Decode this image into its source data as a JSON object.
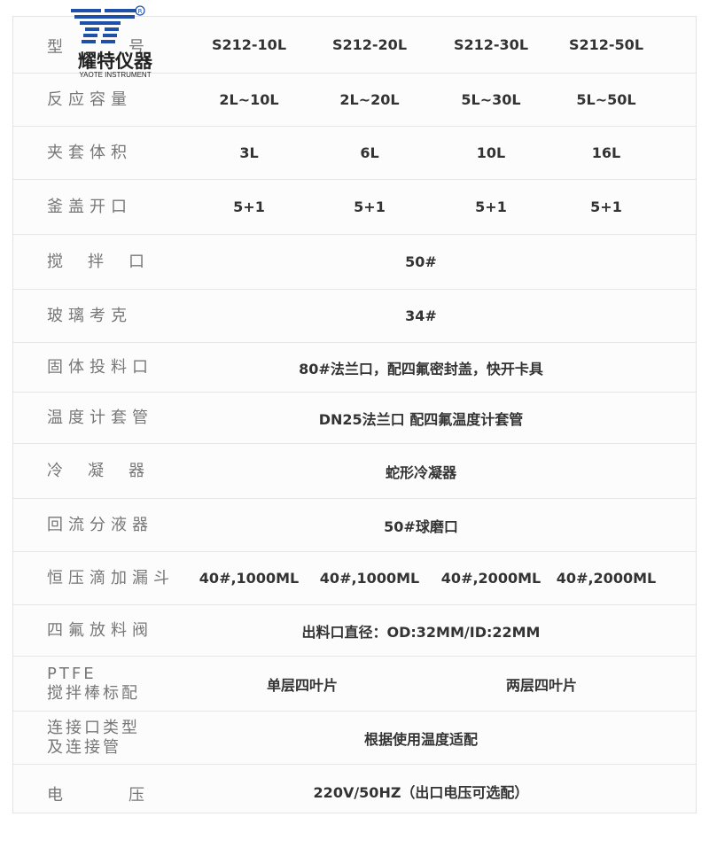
{
  "logo": {
    "brand_cn": "耀特仪器",
    "brand_en": "YAOTE INSTRUMENT",
    "mark": "YT",
    "registered": "®",
    "color": "#1f4fa8"
  },
  "rows": [
    {
      "label": "型号",
      "values": [
        "S212-10L",
        "S212-20L",
        "S212-30L",
        "S212-50L"
      ]
    },
    {
      "label": "反应容量",
      "values": [
        "2L~10L",
        "2L~20L",
        "5L~30L",
        "5L~50L"
      ]
    },
    {
      "label": "夹套体积",
      "values": [
        "3L",
        "6L",
        "10L",
        "16L"
      ]
    },
    {
      "label": "釜盖开口",
      "values": [
        "5+1",
        "5+1",
        "5+1",
        "5+1"
      ]
    },
    {
      "label": "搅拌口",
      "values": [
        "50#"
      ]
    },
    {
      "label": "玻璃考克",
      "values": [
        "34#"
      ]
    },
    {
      "label": "固体投料口",
      "values": [
        "80#法兰口，配四氟密封盖，快开卡具"
      ]
    },
    {
      "label": "温度计套管",
      "values": [
        "DN25法兰口 配四氟温度计套管"
      ]
    },
    {
      "label": "冷凝器",
      "values": [
        "蛇形冷凝器"
      ]
    },
    {
      "label": "回流分液器",
      "values": [
        "50#球磨口"
      ]
    },
    {
      "label": "恒压滴加漏斗",
      "values": [
        "40#,1000ML",
        "40#,1000ML",
        "40#,2000ML",
        "40#,2000ML"
      ]
    },
    {
      "label": "四氟放料阀",
      "values": [
        "出料口直径：OD:32MM/ID:22MM"
      ]
    },
    {
      "label": "PTFE",
      "label2": "搅拌棒标配",
      "values": [
        "单层四叶片",
        "两层四叶片"
      ]
    },
    {
      "label": "连接口类型",
      "label2": "及连接管",
      "values": [
        "根据使用温度适配"
      ]
    },
    {
      "label": "电压",
      "values": [
        "220V/50HZ（出口电压可选配）"
      ]
    }
  ]
}
